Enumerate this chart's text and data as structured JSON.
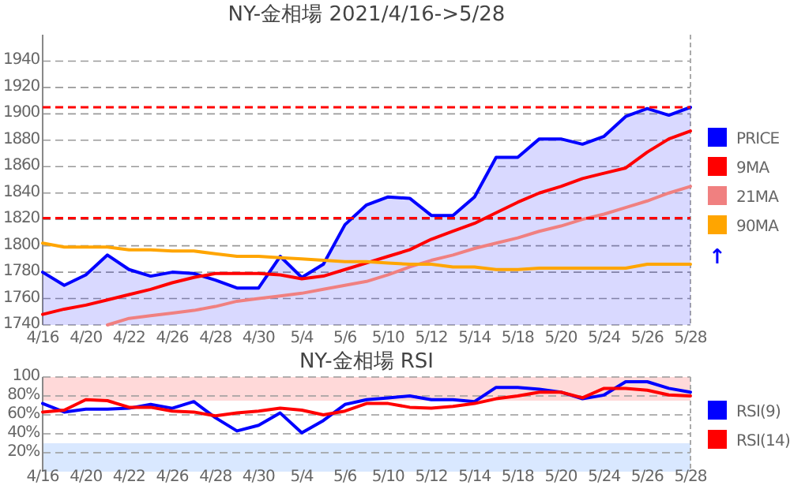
{
  "chart_data": [
    {
      "type": "line",
      "title": "NY-金相場 2021/4/16->5/28",
      "categories": [
        "4/16",
        null,
        "4/20",
        null,
        "4/22",
        null,
        "4/26",
        null,
        "4/28",
        null,
        "4/30",
        null,
        "5/4",
        null,
        "5/6",
        null,
        "5/10",
        null,
        "5/12",
        null,
        "5/14",
        null,
        "5/18",
        null,
        "5/20",
        null,
        "5/24",
        null,
        "5/26",
        null,
        "5/28"
      ],
      "series": [
        {
          "name": "PRICE",
          "type": "area",
          "color": "#0000ff",
          "values": [
            1780,
            1770,
            1778,
            1793,
            1782,
            1777,
            1780,
            1779,
            1774,
            1768,
            1768,
            1792,
            1776,
            1786,
            1816,
            1831,
            1837,
            1836,
            1823,
            1823,
            1837,
            1867,
            1867,
            1881,
            1881,
            1877,
            1883,
            1898,
            1904,
            1899,
            1905
          ]
        },
        {
          "name": "9MA",
          "color": "#ff0000",
          "values": [
            1748,
            1752,
            1755,
            1759,
            1763,
            1767,
            1772,
            1776,
            1779,
            1779,
            1779,
            1778,
            1775,
            1777,
            1782,
            1787,
            1792,
            1797,
            1805,
            1811,
            1817,
            1825,
            1833,
            1840,
            1845,
            1851,
            1855,
            1859,
            1871,
            1881,
            1887
          ]
        },
        {
          "name": "21MA",
          "color": "#f08080",
          "values": [
            null,
            null,
            null,
            1740,
            1745,
            1747,
            1749,
            1751,
            1754,
            1758,
            1760,
            1762,
            1764,
            1767,
            1770,
            1773,
            1778,
            1784,
            1789,
            1793,
            1798,
            1802,
            1806,
            1811,
            1815,
            1820,
            1824,
            1829,
            1834,
            1840,
            1845
          ]
        },
        {
          "name": "90MA",
          "color": "#ffa500",
          "values": [
            1802,
            1799,
            1799,
            1799,
            1797,
            1797,
            1796,
            1796,
            1794,
            1792,
            1792,
            1791,
            1790,
            1789,
            1788,
            1788,
            1787,
            1786,
            1786,
            1784,
            1784,
            1782,
            1782,
            1783,
            1783,
            1783,
            1783,
            1783,
            1786,
            1786,
            1786
          ]
        }
      ],
      "ylim": [
        1740,
        1960
      ],
      "yticks": [
        1740,
        1760,
        1780,
        1800,
        1820,
        1840,
        1860,
        1880,
        1900,
        1920,
        1940
      ],
      "ref_lines": [
        {
          "axis": "y",
          "value": 1905,
          "color": "#ff0000",
          "line_style": "dashed"
        },
        {
          "axis": "y",
          "value": 1821,
          "color": "#ff0000",
          "line_style": "dashed"
        }
      ],
      "annotations": [
        "↑"
      ],
      "grid": "y",
      "legend": "right",
      "marker": "none"
    },
    {
      "type": "line",
      "title": "NY-金相場 RSI",
      "categories": [
        "4/16",
        null,
        "4/20",
        null,
        "4/22",
        null,
        "4/26",
        null,
        "4/28",
        null,
        "4/30",
        null,
        "5/4",
        null,
        "5/6",
        null,
        "5/10",
        null,
        "5/12",
        null,
        "5/14",
        null,
        "5/18",
        null,
        "5/20",
        null,
        "5/24",
        null,
        "5/26",
        null,
        "5/28"
      ],
      "series": [
        {
          "name": "RSI(9)",
          "color": "#0000ff",
          "values": [
            72,
            63,
            66,
            66,
            67,
            71,
            67,
            74,
            57,
            43,
            49,
            62,
            41,
            54,
            71,
            76,
            78,
            80,
            76,
            76,
            74,
            89,
            89,
            87,
            84,
            77,
            81,
            95,
            95,
            88,
            84
          ]
        },
        {
          "name": "RSI(14)",
          "color": "#ff0000",
          "values": [
            63,
            65,
            76,
            75,
            68,
            68,
            64,
            63,
            59,
            62,
            64,
            67,
            65,
            60,
            64,
            72,
            72,
            68,
            67,
            69,
            72,
            77,
            80,
            84,
            84,
            78,
            88,
            88,
            86,
            81,
            80
          ]
        }
      ],
      "ylim": [
        0,
        100
      ],
      "yticks": [
        {
          "value": 20,
          "label": "20%"
        },
        {
          "value": 40,
          "label": "40%"
        },
        {
          "value": 60,
          "label": "60%"
        },
        {
          "value": 80,
          "label": "80%"
        },
        {
          "value": 100,
          "label": "100"
        }
      ],
      "bands": [
        {
          "axis": "y",
          "from": 75,
          "to": 100,
          "color": "#ffcccc"
        },
        {
          "axis": "y",
          "from": 0,
          "to": 30,
          "color": "#cce0ff"
        }
      ],
      "grid": "y",
      "legend": "right",
      "marker": "none"
    }
  ]
}
